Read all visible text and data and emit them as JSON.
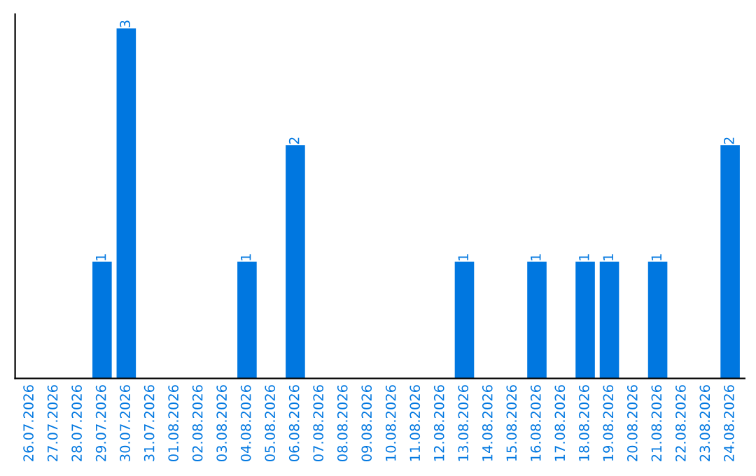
{
  "chart_data": {
    "type": "bar",
    "categories": [
      "26.07.2026",
      "27.07.2026",
      "28.07.2026",
      "29.07.2026",
      "30.07.2026",
      "31.07.2026",
      "01.08.2026",
      "02.08.2026",
      "03.08.2026",
      "04.08.2026",
      "05.08.2026",
      "06.08.2026",
      "07.08.2026",
      "08.08.2026",
      "09.08.2026",
      "10.08.2026",
      "11.08.2026",
      "12.08.2026",
      "13.08.2026",
      "14.08.2026",
      "15.08.2026",
      "16.08.2026",
      "17.08.2026",
      "18.08.2026",
      "19.08.2026",
      "20.08.2026",
      "21.08.2026",
      "22.08.2026",
      "23.08.2026",
      "24.08.2026"
    ],
    "values": [
      0,
      0,
      0,
      1,
      3,
      0,
      0,
      0,
      0,
      1,
      0,
      2,
      0,
      0,
      0,
      0,
      0,
      0,
      1,
      0,
      0,
      1,
      0,
      1,
      1,
      0,
      1,
      0,
      0,
      2
    ],
    "value_labels": [
      null,
      null,
      null,
      "1",
      "3",
      null,
      null,
      null,
      null,
      "1",
      null,
      "2",
      null,
      null,
      null,
      null,
      null,
      null,
      "1",
      null,
      null,
      "1",
      null,
      "1",
      "1",
      null,
      "1",
      null,
      null,
      "2"
    ],
    "color": "#0077e0",
    "tick_labels": "x",
    "grid": false,
    "legend": false
  }
}
